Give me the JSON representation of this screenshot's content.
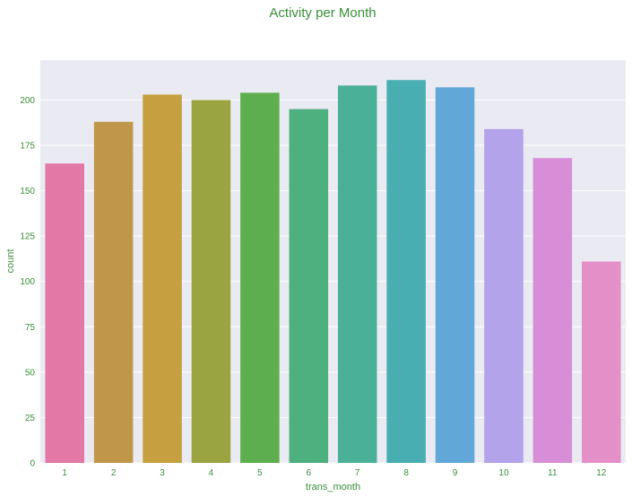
{
  "chart_data": {
    "type": "bar",
    "title": "Activity per Month",
    "xlabel": "trans_month",
    "ylabel": "count",
    "categories": [
      "1",
      "2",
      "3",
      "4",
      "5",
      "6",
      "7",
      "8",
      "9",
      "10",
      "11",
      "12"
    ],
    "values": [
      165,
      188,
      203,
      200,
      204,
      195,
      208,
      211,
      207,
      184,
      168,
      111
    ],
    "ylim": [
      0,
      222
    ],
    "yticks": [
      0,
      25,
      50,
      75,
      100,
      125,
      150,
      175,
      200
    ],
    "grid": true,
    "bar_colors": [
      "#e377a5",
      "#c0974a",
      "#c6a040",
      "#9aa541",
      "#5dae4e",
      "#4fb07f",
      "#4bb098",
      "#48aeb1",
      "#61a8d8",
      "#b3a3ea",
      "#d78ed6",
      "#e58fc8"
    ],
    "text_color": "#3a8f3a",
    "plot_background": "#eaeaf2",
    "grid_color": "#ffffff"
  }
}
